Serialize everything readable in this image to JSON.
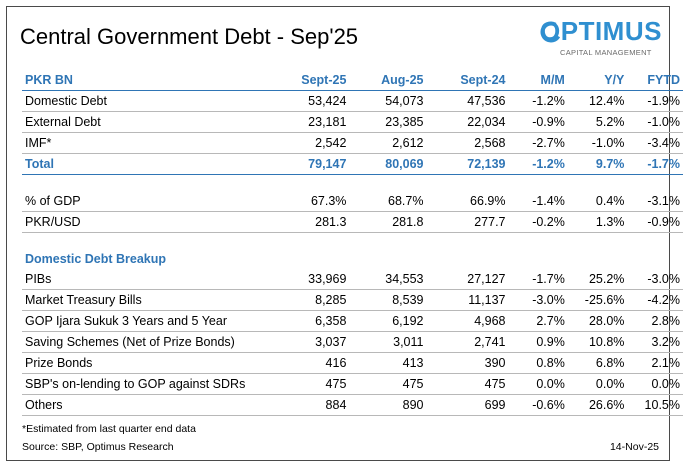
{
  "title": "Central Government Debt - Sep'25",
  "logo": {
    "name": "OPTIMUS",
    "tagline": "CAPITAL MANAGEMENT",
    "color": "#2f8fd0"
  },
  "colors": {
    "accent": "#2f75b5"
  },
  "headers": [
    "PKR BN",
    "Sept-25",
    "Aug-25",
    "Sept-24",
    "M/M",
    "Y/Y",
    "FYTD"
  ],
  "debt_rows": [
    [
      "Domestic Debt",
      "53,424",
      "54,073",
      "47,536",
      "-1.2%",
      "12.4%",
      "-1.9%"
    ],
    [
      "External Debt",
      "23,181",
      "23,385",
      "22,034",
      "-0.9%",
      "5.2%",
      "-1.0%"
    ],
    [
      "IMF*",
      "2,542",
      "2,612",
      "2,568",
      "-2.7%",
      "-1.0%",
      "-3.4%"
    ]
  ],
  "total_row": [
    "Total",
    "79,147",
    "80,069",
    "72,139",
    "-1.2%",
    "9.7%",
    "-1.7%"
  ],
  "ratio_rows": [
    [
      "% of GDP",
      "67.3%",
      "68.7%",
      "66.9%",
      "-1.4%",
      "0.4%",
      "-3.1%"
    ],
    [
      "PKR/USD",
      "281.3",
      "281.8",
      "277.7",
      "-0.2%",
      "1.3%",
      "-0.9%"
    ]
  ],
  "breakup_title": "Domestic Debt Breakup",
  "breakup_rows": [
    [
      "PIBs",
      "33,969",
      "34,553",
      "27,127",
      "-1.7%",
      "25.2%",
      "-3.0%"
    ],
    [
      "Market Treasury Bills",
      "8,285",
      "8,539",
      "11,137",
      "-3.0%",
      "-25.6%",
      "-4.2%"
    ],
    [
      "GOP Ijara Sukuk 3 Years and 5 Year",
      "6,358",
      "6,192",
      "4,968",
      "2.7%",
      "28.0%",
      "2.8%"
    ],
    [
      "Saving Schemes (Net of Prize Bonds)",
      "3,037",
      "3,011",
      "2,741",
      "0.9%",
      "10.8%",
      "3.2%"
    ],
    [
      "Prize Bonds",
      "416",
      "413",
      "390",
      "0.8%",
      "6.8%",
      "2.1%"
    ],
    [
      "SBP's on-lending to GOP against SDRs",
      "475",
      "475",
      "475",
      "0.0%",
      "0.0%",
      "0.0%"
    ],
    [
      "Others",
      "884",
      "890",
      "699",
      "-0.6%",
      "26.6%",
      "10.5%"
    ]
  ],
  "footnote": "*Estimated from last quarter end data",
  "source": "Source: SBP, Optimus Research",
  "date": "14-Nov-25"
}
